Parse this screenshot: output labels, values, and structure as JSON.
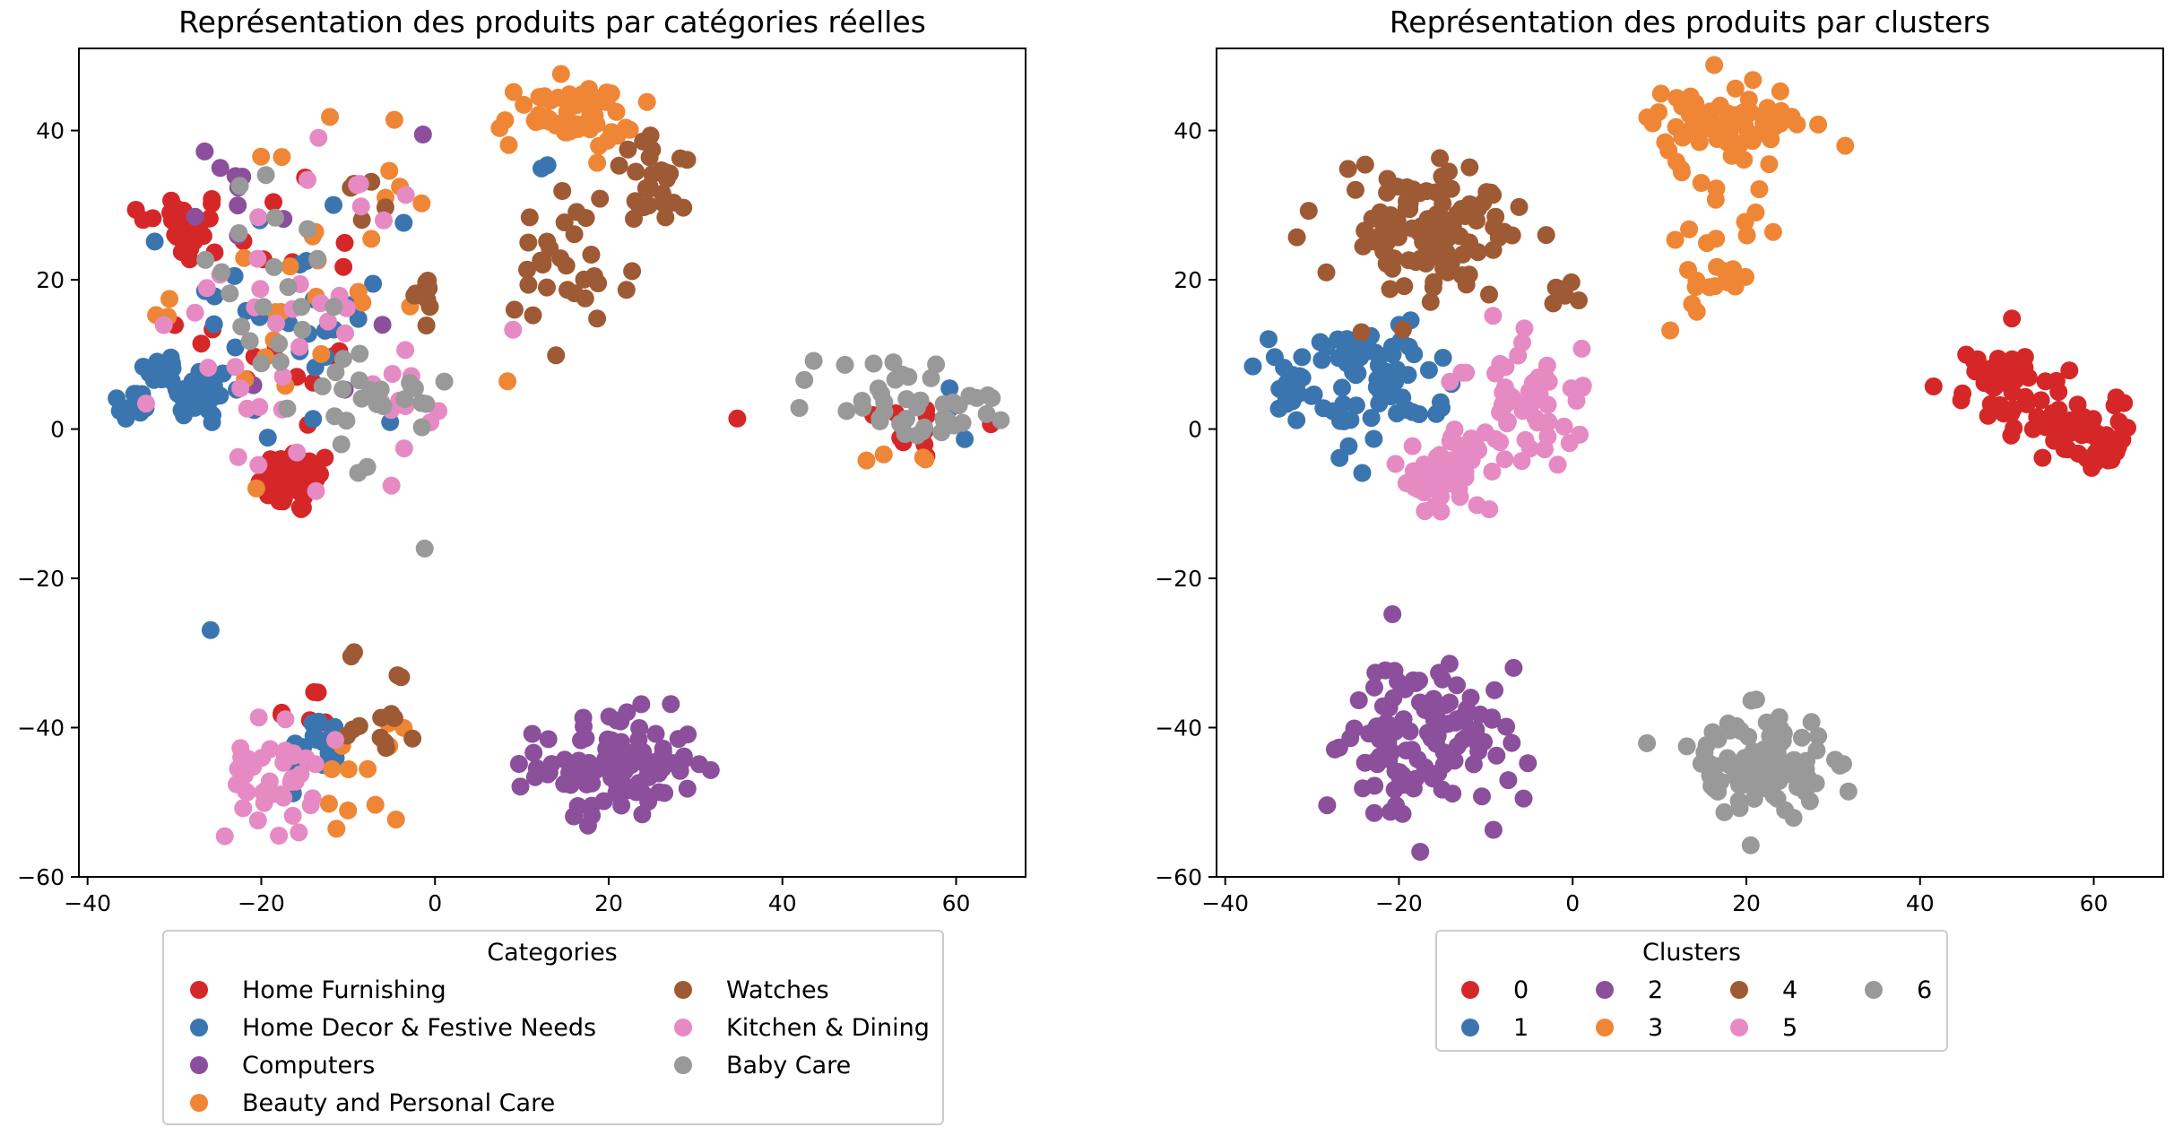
{
  "colors": {
    "red": "#d62728",
    "blue": "#3b75af",
    "purple": "#8b4f9c",
    "orange": "#ef8636",
    "brown": "#9e5a34",
    "pink": "#e68ac3",
    "gray": "#999999"
  },
  "chart_data": [
    {
      "type": "scatter",
      "title": "Représentation des produits par catégories réelles",
      "xlabel": "",
      "ylabel": "",
      "xlim": [
        -41,
        68
      ],
      "ylim": [
        -60,
        51
      ],
      "xticks": [
        -40,
        -20,
        0,
        20,
        40,
        60
      ],
      "yticks": [
        -60,
        -40,
        -20,
        0,
        20,
        40
      ],
      "grid": false,
      "legend": {
        "title": "Categories",
        "placement": "below",
        "columns": 2,
        "entries": [
          {
            "label": "Home Furnishing",
            "color": "#d62728"
          },
          {
            "label": "Home Decor & Festive Needs",
            "color": "#3b75af"
          },
          {
            "label": "Computers",
            "color": "#8b4f9c"
          },
          {
            "label": "Beauty and Personal Care",
            "color": "#ef8636"
          },
          {
            "label": "Watches",
            "color": "#9e5a34"
          },
          {
            "label": "Kitchen & Dining",
            "color": "#e68ac3"
          },
          {
            "label": "Baby Care",
            "color": "#999999"
          }
        ]
      },
      "clusters": [
        {
          "color": "#d62728",
          "cx": -29,
          "cy": 27,
          "sx": 2.5,
          "sy": 2.5,
          "n": 30
        },
        {
          "color": "#d62728",
          "cx": -16,
          "cy": -7,
          "sx": 2.2,
          "sy": 2.2,
          "n": 40
        },
        {
          "color": "#d62728",
          "cx": -19,
          "cy": 18,
          "sx": 6,
          "sy": 10,
          "n": 20
        },
        {
          "color": "#d62728",
          "cx": 55,
          "cy": 0,
          "sx": 5,
          "sy": 3,
          "n": 12
        },
        {
          "color": "#d62728",
          "cx": -17,
          "cy": -38,
          "sx": 4,
          "sy": 3,
          "n": 6
        },
        {
          "color": "#3b75af",
          "cx": -27,
          "cy": 5,
          "sx": 1.8,
          "sy": 1.8,
          "n": 35
        },
        {
          "color": "#3b75af",
          "cx": -31,
          "cy": 8,
          "sx": 1.2,
          "sy": 1.2,
          "n": 12
        },
        {
          "color": "#3b75af",
          "cx": -35,
          "cy": 3,
          "sx": 1.2,
          "sy": 1.2,
          "n": 12
        },
        {
          "color": "#3b75af",
          "cx": -15,
          "cy": 15,
          "sx": 7,
          "sy": 10,
          "n": 30
        },
        {
          "color": "#3b75af",
          "cx": -14,
          "cy": -43,
          "sx": 1.5,
          "sy": 2.5,
          "n": 22
        },
        {
          "color": "#3b75af",
          "cx": 13,
          "cy": 36,
          "sx": 2,
          "sy": 2,
          "n": 3
        },
        {
          "color": "#3b75af",
          "cx": 58,
          "cy": 0,
          "sx": 3,
          "sy": 3,
          "n": 3
        },
        {
          "color": "#8b4f9c",
          "cx": 21,
          "cy": -45,
          "sx": 4.5,
          "sy": 3.5,
          "n": 110
        },
        {
          "color": "#8b4f9c",
          "cx": -22,
          "cy": 32,
          "sx": 3,
          "sy": 3,
          "n": 8
        },
        {
          "color": "#8b4f9c",
          "cx": -13,
          "cy": 20,
          "sx": 6,
          "sy": 10,
          "n": 5
        },
        {
          "color": "#ef8636",
          "cx": 15,
          "cy": 42,
          "sx": 4,
          "sy": 2.2,
          "n": 55
        },
        {
          "color": "#ef8636",
          "cx": -14,
          "cy": 20,
          "sx": 8,
          "sy": 12,
          "n": 30
        },
        {
          "color": "#ef8636",
          "cx": -9,
          "cy": -46,
          "sx": 2.5,
          "sy": 3,
          "n": 12
        },
        {
          "color": "#ef8636",
          "cx": 53,
          "cy": -5,
          "sx": 2,
          "sy": 1,
          "n": 4
        },
        {
          "color": "#9e5a34",
          "cx": 26,
          "cy": 33,
          "sx": 3,
          "sy": 3,
          "n": 30
        },
        {
          "color": "#9e5a34",
          "cx": 15,
          "cy": 20,
          "sx": 4,
          "sy": 6,
          "n": 30
        },
        {
          "color": "#9e5a34",
          "cx": -1,
          "cy": 18,
          "sx": 1,
          "sy": 1.5,
          "n": 10
        },
        {
          "color": "#9e5a34",
          "cx": -6,
          "cy": -37,
          "sx": 2,
          "sy": 4,
          "n": 15
        },
        {
          "color": "#9e5a34",
          "cx": -7,
          "cy": 33,
          "sx": 1.5,
          "sy": 3,
          "n": 5
        },
        {
          "color": "#e68ac3",
          "cx": -19,
          "cy": -47,
          "sx": 2.5,
          "sy": 4,
          "n": 40
        },
        {
          "color": "#e68ac3",
          "cx": -15,
          "cy": 15,
          "sx": 8,
          "sy": 12,
          "n": 40
        },
        {
          "color": "#e68ac3",
          "cx": -4,
          "cy": 4,
          "sx": 2,
          "sy": 3,
          "n": 10
        },
        {
          "color": "#999999",
          "cx": 52,
          "cy": 5,
          "sx": 4,
          "sy": 2.5,
          "n": 25
        },
        {
          "color": "#999999",
          "cx": 59,
          "cy": 1,
          "sx": 2.5,
          "sy": 2,
          "n": 20
        },
        {
          "color": "#999999",
          "cx": -8,
          "cy": 2,
          "sx": 5,
          "sy": 6,
          "n": 25
        },
        {
          "color": "#999999",
          "cx": -20,
          "cy": 18,
          "sx": 6,
          "sy": 10,
          "n": 20
        }
      ]
    },
    {
      "type": "scatter",
      "title": "Représentation des produits par clusters",
      "xlabel": "",
      "ylabel": "",
      "xlim": [
        -41,
        68
      ],
      "ylim": [
        -60,
        51
      ],
      "xticks": [
        -40,
        -20,
        0,
        20,
        40,
        60
      ],
      "yticks": [
        -60,
        -40,
        -20,
        0,
        20,
        40
      ],
      "grid": false,
      "legend": {
        "title": "Clusters",
        "placement": "below",
        "columns": 4,
        "entries": [
          {
            "label": "0",
            "color": "#d62728"
          },
          {
            "label": "1",
            "color": "#3b75af"
          },
          {
            "label": "2",
            "color": "#8b4f9c"
          },
          {
            "label": "3",
            "color": "#ef8636"
          },
          {
            "label": "4",
            "color": "#9e5a34"
          },
          {
            "label": "5",
            "color": "#e68ac3"
          },
          {
            "label": "6",
            "color": "#999999"
          }
        ]
      },
      "clusters": [
        {
          "color": "#d62728",
          "cx": 50,
          "cy": 6,
          "sx": 3.5,
          "sy": 2.5,
          "n": 45
        },
        {
          "color": "#d62728",
          "cx": 58,
          "cy": 0,
          "sx": 3,
          "sy": 2.5,
          "n": 55
        },
        {
          "color": "#3b75af",
          "cx": -24,
          "cy": 6,
          "sx": 4,
          "sy": 4,
          "n": 70
        },
        {
          "color": "#3b75af",
          "cx": -33,
          "cy": 6,
          "sx": 1.5,
          "sy": 2.5,
          "n": 18
        },
        {
          "color": "#8b4f9c",
          "cx": -17,
          "cy": -42,
          "sx": 5,
          "sy": 5.5,
          "n": 115
        },
        {
          "color": "#ef8636",
          "cx": 17,
          "cy": 41,
          "sx": 5,
          "sy": 2.5,
          "n": 70
        },
        {
          "color": "#ef8636",
          "cx": 16,
          "cy": 25,
          "sx": 4,
          "sy": 5,
          "n": 30
        },
        {
          "color": "#9e5a34",
          "cx": -17,
          "cy": 27,
          "sx": 6,
          "sy": 5,
          "n": 115
        },
        {
          "color": "#9e5a34",
          "cx": -1,
          "cy": 18,
          "sx": 1,
          "sy": 1.5,
          "n": 6
        },
        {
          "color": "#e68ac3",
          "cx": -15,
          "cy": -6,
          "sx": 2.5,
          "sy": 2.5,
          "n": 50
        },
        {
          "color": "#e68ac3",
          "cx": -6,
          "cy": 3,
          "sx": 4,
          "sy": 5,
          "n": 60
        },
        {
          "color": "#999999",
          "cx": 21,
          "cy": -45,
          "sx": 4.5,
          "sy": 3.5,
          "n": 115
        }
      ]
    }
  ]
}
